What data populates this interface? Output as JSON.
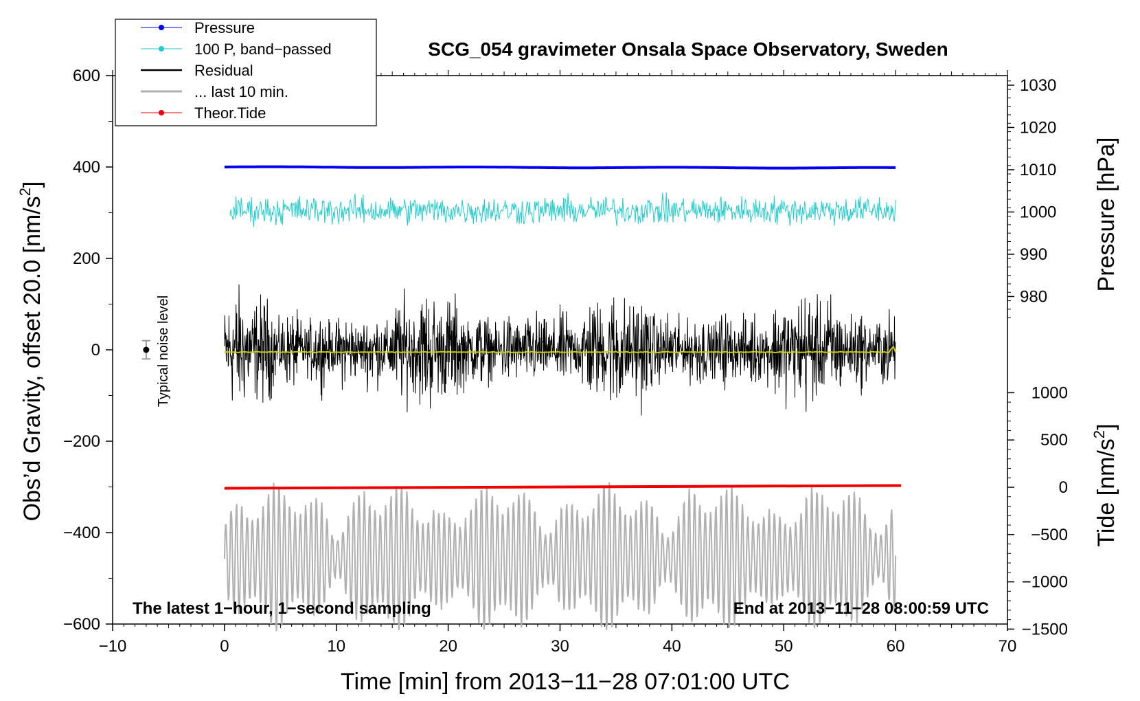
{
  "chart_data": {
    "type": "line",
    "title": "SCG_054 gravimeter Onsala Space Observatory, Sweden",
    "xlabel": "Time [min] from 2013−11−28 07:01:00 UTC",
    "ylabel": "Obs’d Gravity, offset 20.0 [nm/s",
    "ylabel_sup": "2",
    "ylabel_end": "]",
    "y2label": "Pressure [hPa]",
    "y3label": "Tide [nm/s",
    "y3label_sup": "2",
    "y3label_end": "]",
    "xlim": [
      -10,
      70
    ],
    "ylim": [
      -600,
      600
    ],
    "x_ticks": [
      -10,
      0,
      10,
      20,
      30,
      40,
      50,
      60,
      70
    ],
    "x_tick_labels": [
      "−10",
      "0",
      "10",
      "20",
      "30",
      "40",
      "50",
      "60",
      "70"
    ],
    "y_ticks": [
      -600,
      -400,
      -200,
      0,
      200,
      400,
      600
    ],
    "y_tick_labels": [
      "−600",
      "−400",
      "−200",
      "0",
      "200",
      "400",
      "600"
    ],
    "pressure_axis": {
      "ticks": [
        980,
        990,
        1000,
        1010,
        1020,
        1030
      ],
      "tick_labels": [
        "980",
        "990",
        "1000",
        "1010",
        "1020",
        "1030"
      ]
    },
    "tide_axis": {
      "ticks": [
        -1500,
        -1000,
        -500,
        0,
        500,
        1000
      ],
      "tick_labels": [
        "−1500",
        "−1000",
        "−500",
        "0",
        "500",
        "1000"
      ]
    },
    "annotations": {
      "bottom_left": "The latest 1−hour, 1−second sampling",
      "bottom_right": "End at 2013−11−28 08:00:59 UTC",
      "noise_label": "Typical noise level"
    },
    "noise_bar": {
      "x": -7,
      "y": 0,
      "low": -20,
      "high": 20
    },
    "legend": [
      {
        "label": "Pressure",
        "color": "#0000ee",
        "style": "line-marker"
      },
      {
        "label": "100 P, band−passed",
        "color": "#22cccc",
        "style": "line-marker"
      },
      {
        "label": "Residual",
        "color": "#000000",
        "style": "line"
      },
      {
        "label": "... last 10 min.",
        "color": "#b0b0b0",
        "style": "line"
      },
      {
        "label": "Theor.Tide",
        "color": "#ee0000",
        "style": "line-marker"
      }
    ],
    "series": [
      {
        "name": "Pressure",
        "color": "#0000ee",
        "x_range": [
          0,
          60
        ],
        "start": 400,
        "end": 398,
        "amplitude": 1.5
      },
      {
        "name": "100 P, band−passed",
        "color": "#22cccc",
        "x_range": [
          0.5,
          60
        ],
        "center": 305,
        "amplitude": 45
      },
      {
        "name": "Residual",
        "color": "#000000",
        "x_range": [
          0,
          60
        ],
        "center": 0,
        "amplitude": 120
      },
      {
        "name": "... last 10 min.",
        "color": "#b0b0b0",
        "x_range": [
          0,
          60
        ],
        "center": -455,
        "amplitude": 100
      },
      {
        "name": "Theor.Tide",
        "color": "#ee0000",
        "x_range": [
          0,
          60.5
        ],
        "start": -303,
        "end": -297
      },
      {
        "name": "Residual mean",
        "color": "#cccc00",
        "x_range": [
          0,
          60
        ],
        "center": -5
      }
    ]
  }
}
